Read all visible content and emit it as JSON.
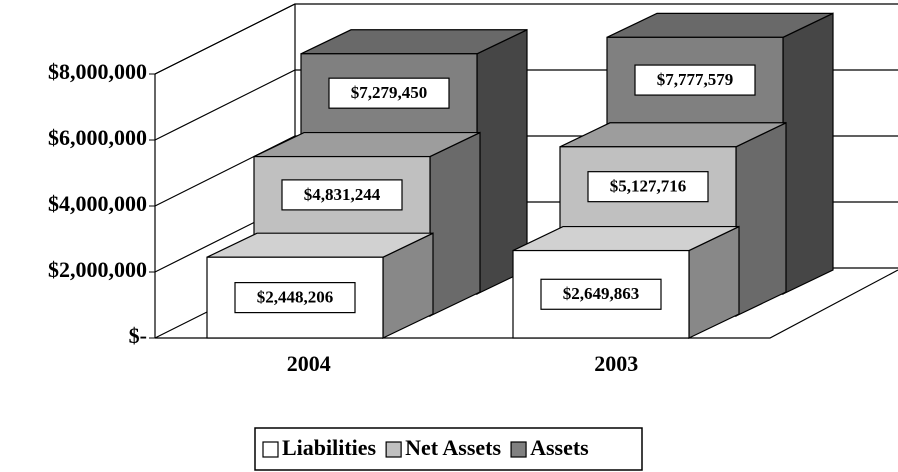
{
  "chart_data": {
    "type": "bar3d",
    "categories": [
      "2004",
      "2003"
    ],
    "series": [
      {
        "name": "Liabilities",
        "color": "#ffffff",
        "values": [
          2448206,
          2649863
        ],
        "value_labels": [
          "$2,448,206",
          "$2,649,863"
        ]
      },
      {
        "name": "Net Assets",
        "color": "#c0c0c0",
        "values": [
          4831244,
          5127716
        ],
        "value_labels": [
          "$4,831,244",
          "$5,127,716"
        ]
      },
      {
        "name": "Assets",
        "color": "#808080",
        "values": [
          7279450,
          7777579
        ],
        "value_labels": [
          "$7,279,450",
          "$7,777,579"
        ]
      }
    ],
    "ylim": [
      0,
      8000000
    ],
    "yticks": [
      {
        "value": 0,
        "label": "$-"
      },
      {
        "value": 2000000,
        "label": "$2,000,000"
      },
      {
        "value": 4000000,
        "label": "$4,000,000"
      },
      {
        "value": 6000000,
        "label": "$6,000,000"
      },
      {
        "value": 8000000,
        "label": "$8,000,000"
      }
    ],
    "grid": true,
    "legend": "bottom"
  }
}
